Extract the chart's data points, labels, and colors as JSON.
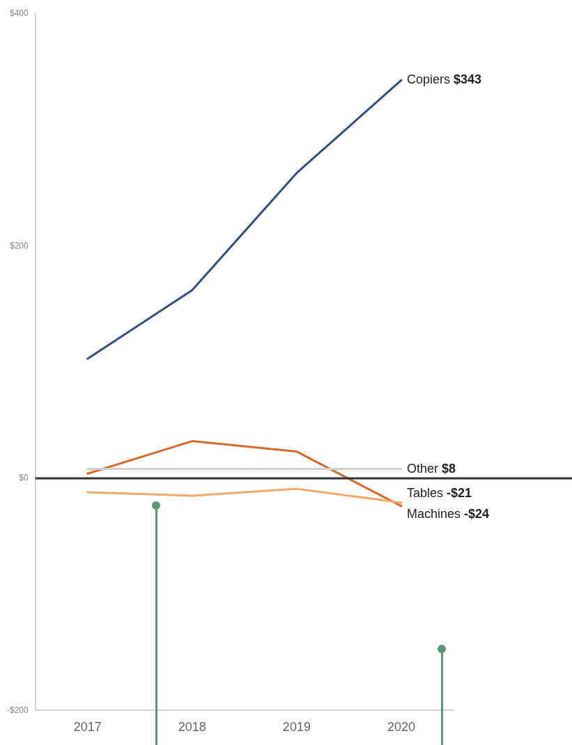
{
  "chart_data": {
    "type": "line",
    "categories": [
      "2017",
      "2018",
      "2019",
      "2020"
    ],
    "series": [
      {
        "color": "#2f4f82",
        "values": [
          103,
          162,
          263,
          343
        ]
      },
      {
        "color": "#cfcfcf",
        "values": [
          8,
          8,
          8,
          8
        ]
      },
      {
        "color": "#f2a96a",
        "values": [
          -12,
          -15,
          -9,
          -21
        ]
      },
      {
        "color": "#d9692b",
        "values": [
          4,
          32,
          23,
          -24
        ]
      }
    ],
    "annotations": [
      {
        "text": "Copiers $343",
        "x": "2020",
        "y": 343
      },
      {
        "text": "Other $8",
        "x": "2020",
        "y": 8
      },
      {
        "text": "Tables -$21",
        "x": "2020",
        "y": -21
      },
      {
        "text": "Machines -$24",
        "x": "2020",
        "y": -24
      }
    ],
    "ylim": [
      -200,
      400
    ],
    "yticks": [
      {
        "value": -200,
        "label": "-$200"
      },
      {
        "value": 0,
        "label": "$0"
      },
      {
        "value": 200,
        "label": "$200"
      },
      {
        "value": 400,
        "label": "$400"
      }
    ],
    "ref_lines": [
      {
        "axis": "y",
        "value": 0,
        "color": "#333333"
      }
    ],
    "grid": false,
    "legend": false,
    "marker": "none",
    "line_style": "solid"
  }
}
